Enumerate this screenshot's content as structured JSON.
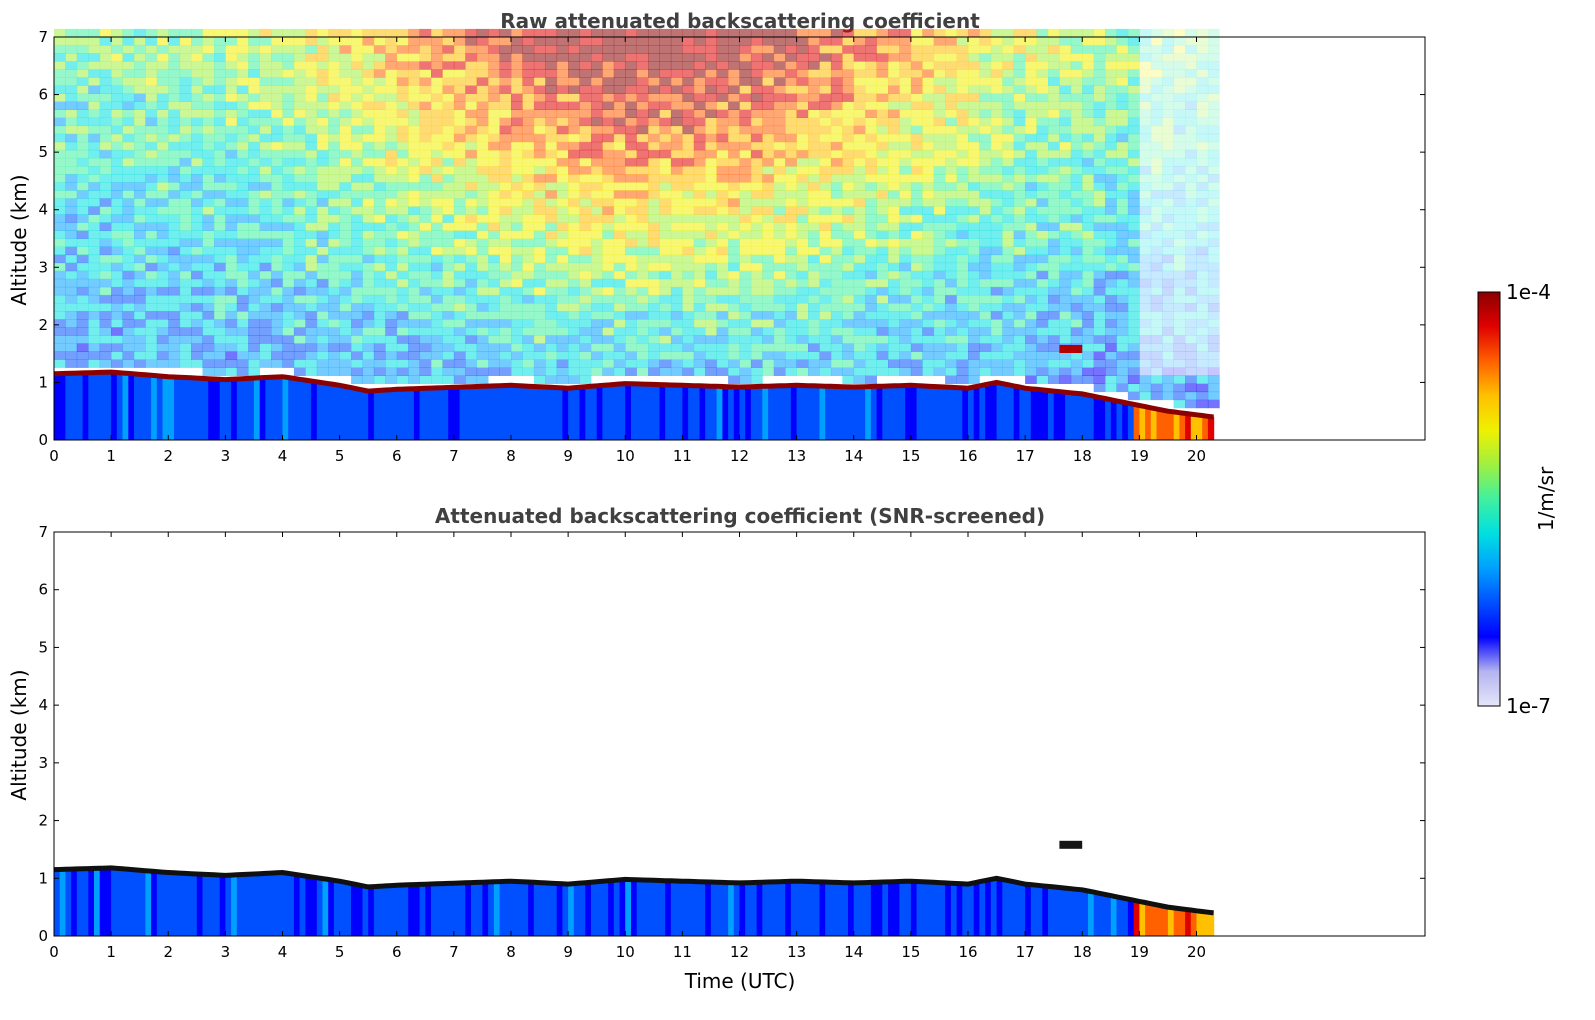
{
  "chart_data": [
    {
      "type": "heatmap",
      "title": "Raw attenuated backscattering coefficient",
      "xlabel": "",
      "ylabel": "Altitude (km)",
      "xlim": [
        0,
        24
      ],
      "ylim": [
        0,
        7
      ],
      "x_ticks": [
        "0",
        "1",
        "2",
        "3",
        "4",
        "5",
        "6",
        "7",
        "8",
        "9",
        "10",
        "11",
        "12",
        "13",
        "14",
        "15",
        "16",
        "17",
        "18",
        "19",
        "20"
      ],
      "y_ticks": [
        "0",
        "1",
        "2",
        "3",
        "4",
        "5",
        "6",
        "7"
      ],
      "data_end_time": 20.3,
      "cloud_layer": {
        "description": "strong backscatter layer at top of boundary layer",
        "times": [
          0,
          1,
          2,
          3,
          4,
          5,
          5.5,
          6,
          8,
          9,
          10,
          11,
          12,
          13,
          14,
          15,
          16,
          16.5,
          17,
          17.5,
          18,
          18.5,
          19,
          19.5,
          20.3
        ],
        "heights": [
          1.15,
          1.18,
          1.1,
          1.05,
          1.1,
          0.95,
          0.85,
          0.88,
          0.95,
          0.9,
          0.98,
          0.95,
          0.92,
          0.95,
          0.92,
          0.95,
          0.9,
          1.0,
          0.9,
          0.85,
          0.8,
          0.7,
          0.6,
          0.5,
          0.4
        ]
      },
      "elevated_cloud": {
        "time_start": 17.6,
        "time_end": 18.0,
        "height": 1.58
      },
      "high_signal_region": {
        "time_start": 18.8,
        "time_end": 20.3,
        "max_height": 0.45
      }
    },
    {
      "type": "heatmap",
      "title": "Attenuated backscattering coefficient (SNR-screened)",
      "xlabel": "Time (UTC)",
      "ylabel": "Altitude (km)",
      "xlim": [
        0,
        24
      ],
      "ylim": [
        0,
        7
      ],
      "x_ticks": [
        "0",
        "1",
        "2",
        "3",
        "4",
        "5",
        "6",
        "7",
        "8",
        "9",
        "10",
        "11",
        "12",
        "13",
        "14",
        "15",
        "16",
        "17",
        "18",
        "19",
        "20"
      ],
      "y_ticks": [
        "0",
        "1",
        "2",
        "3",
        "4",
        "5",
        "6",
        "7"
      ],
      "data_end_time": 20.3,
      "cloud_layer": {
        "description": "strong backscatter layer at top of boundary layer",
        "times": [
          0,
          1,
          2,
          3,
          4,
          5,
          5.5,
          6,
          8,
          9,
          10,
          11,
          12,
          13,
          14,
          15,
          16,
          16.5,
          17,
          17.5,
          18,
          18.5,
          19,
          19.5,
          20.3
        ],
        "heights": [
          1.15,
          1.18,
          1.1,
          1.05,
          1.1,
          0.95,
          0.85,
          0.88,
          0.95,
          0.9,
          0.98,
          0.95,
          0.92,
          0.95,
          0.92,
          0.95,
          0.9,
          1.0,
          0.9,
          0.85,
          0.8,
          0.7,
          0.6,
          0.5,
          0.4
        ]
      },
      "elevated_cloud": {
        "time_start": 17.6,
        "time_end": 18.0,
        "height": 1.58
      },
      "high_signal_region": {
        "time_start": 18.8,
        "time_end": 20.3,
        "max_height": 0.45
      }
    }
  ],
  "colorbar": {
    "label": "1/m/sr",
    "min_label": "1e-7",
    "max_label": "1e-4",
    "scale": "log",
    "colors": [
      "#e6e6fa",
      "#b4b4f0",
      "#0000ff",
      "#0050ff",
      "#00a0ff",
      "#00e0e0",
      "#40f0a0",
      "#a0f040",
      "#f0f000",
      "#ffc000",
      "#ff6000",
      "#e00000",
      "#8b0000"
    ]
  }
}
